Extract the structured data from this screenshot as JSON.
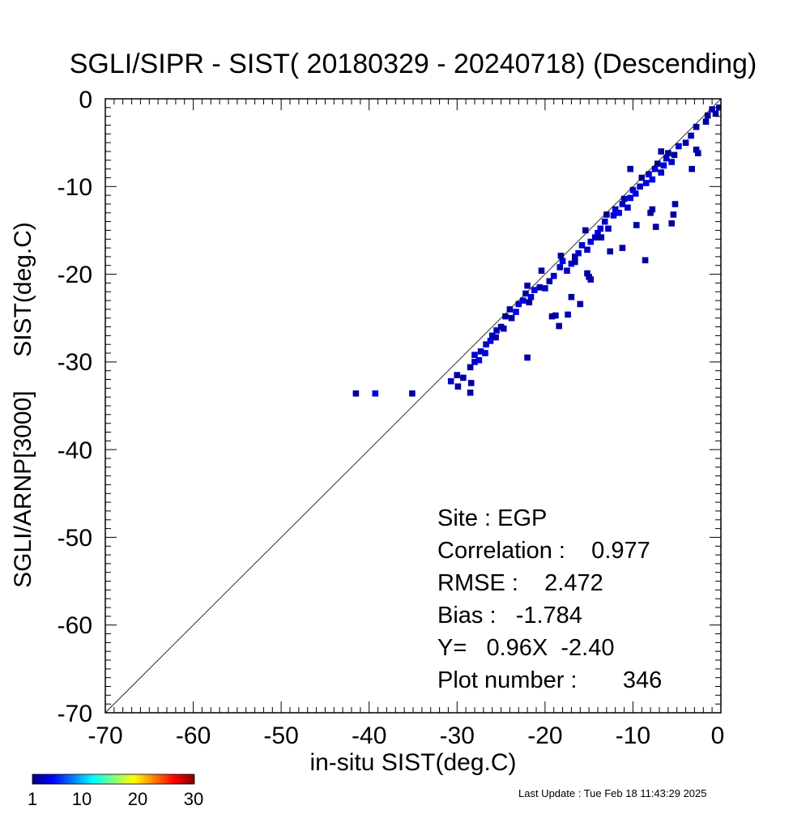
{
  "title": "SGLI/SIPR - SIST( 20180329 - 20240718) (Descending)",
  "xlabel": "in-situ SIST(deg.C)",
  "ylabel": "SGLI/ARNP[3000]     SIST(deg.C)",
  "x_ticks": [
    "-70",
    "-60",
    "-50",
    "-40",
    "-30",
    "-20",
    "-10",
    "0"
  ],
  "y_ticks": [
    "0",
    "-10",
    "-20",
    "-30",
    "-40",
    "-50",
    "-60",
    "-70"
  ],
  "stats": {
    "site": "Site : EGP",
    "correlation": "Correlation :    0.977",
    "rmse": "RMSE :    2.472",
    "bias": "Bias :   -1.784",
    "regression": "Y=   0.96X  -2.40",
    "plot_number": "Plot number :       346"
  },
  "colorbar": {
    "labels": [
      "1",
      "10",
      "20",
      "30"
    ],
    "colors": [
      "#00007f",
      "#0000ff",
      "#007fff",
      "#00ffff",
      "#7fff7f",
      "#ffff00",
      "#ff7f00",
      "#ff0000",
      "#7f0000"
    ]
  },
  "last_update": "Last Update : Tue Feb 18 11:43:29 2025",
  "chart_data": {
    "type": "heatmap",
    "title": "SGLI/SIPR - SIST( 20180329 - 20240718) (Descending)",
    "xlabel": "in-situ SIST(deg.C)",
    "ylabel": "SGLI/ARNP[3000]     SIST(deg.C)",
    "xlim": [
      -70,
      0
    ],
    "ylim": [
      -70,
      0
    ],
    "bin_size": 0.7,
    "count_range": [
      1,
      30
    ],
    "reference_line": "1:1",
    "cells": [
      [
        -41.5,
        -33.6,
        2
      ],
      [
        -39.3,
        -33.6,
        4
      ],
      [
        -35.1,
        -33.6,
        2
      ],
      [
        -30.7,
        -32.2,
        3
      ],
      [
        -30.0,
        -31.5,
        2
      ],
      [
        -29.9,
        -32.8,
        2
      ],
      [
        -29.3,
        -31.8,
        2
      ],
      [
        -28.5,
        -33.5,
        2
      ],
      [
        -28.4,
        -32.4,
        2
      ],
      [
        -28.5,
        -30.6,
        2
      ],
      [
        -28.0,
        -30.0,
        3
      ],
      [
        -28.0,
        -29.2,
        3
      ],
      [
        -27.5,
        -29.8,
        4
      ],
      [
        -27.3,
        -28.8,
        3
      ],
      [
        -26.8,
        -29.0,
        4
      ],
      [
        -26.7,
        -28.0,
        3
      ],
      [
        -26.2,
        -27.6,
        4
      ],
      [
        -26.0,
        -27.0,
        3
      ],
      [
        -25.6,
        -27.2,
        2
      ],
      [
        -25.5,
        -26.4,
        3
      ],
      [
        -25.0,
        -26.0,
        2
      ],
      [
        -24.7,
        -26.2,
        2
      ],
      [
        -22.0,
        -29.5,
        2
      ],
      [
        -24.5,
        -24.8,
        2
      ],
      [
        -24.0,
        -24.0,
        3
      ],
      [
        -23.8,
        -25.0,
        2
      ],
      [
        -23.3,
        -24.3,
        4
      ],
      [
        -23.0,
        -23.4,
        3
      ],
      [
        -22.5,
        -23.0,
        4
      ],
      [
        -22.2,
        -22.2,
        3
      ],
      [
        -22.0,
        -21.3,
        2
      ],
      [
        -21.6,
        -22.6,
        3
      ],
      [
        -21.2,
        -21.8,
        4
      ],
      [
        -20.6,
        -21.5,
        2
      ],
      [
        -20.0,
        -21.6,
        3
      ],
      [
        -19.5,
        -20.8,
        2
      ],
      [
        -19.0,
        -20.2,
        3
      ],
      [
        -18.8,
        -24.7,
        2
      ],
      [
        -18.4,
        -25.9,
        2
      ],
      [
        -17.4,
        -24.6,
        2
      ],
      [
        -18.3,
        -19.2,
        3
      ],
      [
        -18.0,
        -18.5,
        4
      ],
      [
        -17.5,
        -19.6,
        3
      ],
      [
        -17.0,
        -18.8,
        4
      ],
      [
        -16.6,
        -18.0,
        2
      ],
      [
        -16.2,
        -17.6,
        3
      ],
      [
        -16.0,
        -23.4,
        2
      ],
      [
        -15.8,
        -16.7,
        3
      ],
      [
        -15.2,
        -19.9,
        2
      ],
      [
        -15.0,
        -20.3,
        2
      ],
      [
        -15.2,
        -17.2,
        3
      ],
      [
        -14.8,
        -16.3,
        4
      ],
      [
        -14.3,
        -15.8,
        3
      ],
      [
        -14.0,
        -15.3,
        3
      ],
      [
        -13.7,
        -14.8,
        4
      ],
      [
        -13.2,
        -14.0,
        3
      ],
      [
        -13.0,
        -13.2,
        2
      ],
      [
        -12.8,
        -14.8,
        3
      ],
      [
        -12.2,
        -13.3,
        4
      ],
      [
        -12.0,
        -12.6,
        3
      ],
      [
        -11.6,
        -13.0,
        4
      ],
      [
        -11.2,
        -12.0,
        3
      ],
      [
        -11.0,
        -11.4,
        2
      ],
      [
        -10.6,
        -12.4,
        3
      ],
      [
        -10.3,
        -11.3,
        4
      ],
      [
        -10.0,
        -10.4,
        3
      ],
      [
        -10.3,
        -8.0,
        2
      ],
      [
        -9.7,
        -10.8,
        4
      ],
      [
        -9.2,
        -10.0,
        3
      ],
      [
        -9.0,
        -9.0,
        2
      ],
      [
        -8.5,
        -9.6,
        4
      ],
      [
        -8.2,
        -8.6,
        3
      ],
      [
        -7.8,
        -9.2,
        4
      ],
      [
        -7.5,
        -8.0,
        3
      ],
      [
        -7.2,
        -7.4,
        2
      ],
      [
        -6.8,
        -8.4,
        3
      ],
      [
        -6.5,
        -7.6,
        4
      ],
      [
        -6.2,
        -6.8,
        3
      ],
      [
        -6.0,
        -6.2,
        2
      ],
      [
        -5.6,
        -7.2,
        3
      ],
      [
        -5.3,
        -6.4,
        2
      ],
      [
        -4.8,
        -5.4,
        3
      ],
      [
        -4.0,
        -5.0,
        2
      ],
      [
        -3.4,
        -4.2,
        2
      ],
      [
        -2.8,
        -3.2,
        2
      ],
      [
        -1.7,
        -2.6,
        2
      ],
      [
        -1.5,
        -1.9,
        2
      ],
      [
        -1.0,
        -1.2,
        3
      ],
      [
        -0.6,
        -1.7,
        2
      ],
      [
        -0.2,
        -1.0,
        2
      ],
      [
        -11.2,
        -17.0,
        2
      ],
      [
        -9.6,
        -14.4,
        2
      ],
      [
        -8.6,
        -18.4,
        2
      ],
      [
        -7.8,
        -12.6,
        2
      ],
      [
        -8.0,
        -13.0,
        2
      ],
      [
        -7.4,
        -14.6,
        2
      ],
      [
        -5.6,
        -14.2,
        2
      ],
      [
        -5.4,
        -13.2,
        2
      ],
      [
        -5.2,
        -12.0,
        2
      ],
      [
        -3.3,
        -8.0,
        2
      ],
      [
        -2.8,
        -5.8,
        2
      ],
      [
        -2.6,
        -6.2,
        2
      ],
      [
        -12.6,
        -17.4,
        2
      ],
      [
        -14.8,
        -20.6,
        2
      ],
      [
        -19.2,
        -24.8,
        2
      ],
      [
        -17.0,
        -22.6,
        2
      ],
      [
        -16.6,
        -18.6,
        2
      ],
      [
        -21.8,
        -23.2,
        2
      ],
      [
        -13.6,
        -15.8,
        2
      ],
      [
        -15.4,
        -15.0,
        2
      ],
      [
        -18.2,
        -17.9,
        2
      ],
      [
        -20.4,
        -19.6,
        2
      ],
      [
        -6.8,
        -6.0,
        2
      ]
    ]
  }
}
